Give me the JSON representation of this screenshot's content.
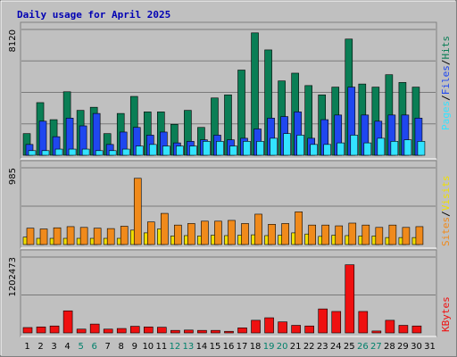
{
  "chart_data": {
    "type": "bar",
    "title": "Daily usage for April 2025",
    "categories": [
      "1",
      "2",
      "3",
      "4",
      "5",
      "6",
      "7",
      "8",
      "9",
      "10",
      "11",
      "12",
      "13",
      "14",
      "15",
      "16",
      "17",
      "18",
      "19",
      "20",
      "21",
      "22",
      "23",
      "24",
      "25",
      "26",
      "27",
      "28",
      "29",
      "30",
      "31"
    ],
    "weekend_days": [
      "5",
      "6",
      "12",
      "13",
      "19",
      "20",
      "26",
      "27"
    ],
    "panels": [
      {
        "name": "pages-files-hits",
        "ymax_label": "8120",
        "ylim": [
          0,
          8120
        ],
        "legend": [
          "Pages",
          "/",
          "Files",
          "/",
          "Hits"
        ],
        "series": [
          {
            "name": "Hits",
            "color": "#0a7e55",
            "values": [
              1400,
              3400,
              2300,
              4100,
              2900,
              3100,
              1400,
              2700,
              3800,
              2800,
              2800,
              2000,
              2900,
              1800,
              3700,
              3900,
              5500,
              7900,
              6800,
              4800,
              5300,
              4500,
              3900,
              4400,
              7500,
              4600,
              4400,
              5200,
              4700,
              4400,
              0
            ]
          },
          {
            "name": "Files",
            "color": "#1f47ef",
            "values": [
              700,
              2200,
              1200,
              2400,
              1900,
              2700,
              700,
              1500,
              1800,
              1300,
              1500,
              800,
              900,
              1000,
              1300,
              1000,
              1100,
              1700,
              2400,
              2500,
              2800,
              1100,
              2300,
              2600,
              4400,
              2600,
              2200,
              2600,
              2600,
              2400,
              0
            ]
          },
          {
            "name": "Pages",
            "color": "#33e3ff",
            "values": [
              300,
              300,
              400,
              400,
              400,
              300,
              300,
              400,
              600,
              700,
              600,
              600,
              600,
              900,
              900,
              600,
              900,
              900,
              1100,
              1400,
              1300,
              700,
              700,
              800,
              1300,
              800,
              1100,
              900,
              1000,
              900,
              0
            ]
          }
        ]
      },
      {
        "name": "visits-sites",
        "ymax_label": "985",
        "ylim": [
          0,
          985
        ],
        "legend": [
          "Sites",
          "/",
          "Visits"
        ],
        "series": [
          {
            "name": "Visits",
            "color": "#f0df00",
            "values": [
              95,
              80,
              80,
              80,
              80,
              80,
              80,
              80,
              185,
              150,
              200,
              110,
              115,
              110,
              120,
              115,
              120,
              125,
              115,
              120,
              150,
              135,
              105,
              120,
              115,
              110,
              110,
              90,
              90,
              90,
              0
            ]
          },
          {
            "name": "Sites",
            "color": "#f08a1b",
            "values": [
              210,
              200,
              215,
              230,
              220,
              210,
              205,
              235,
              850,
              290,
              400,
              250,
              270,
              300,
              300,
              310,
              270,
              390,
              260,
              270,
              420,
              250,
              250,
              240,
              275,
              250,
              220,
              250,
              220,
              230,
              0
            ]
          }
        ]
      },
      {
        "name": "kbytes",
        "ymax_label": "1202473",
        "ylim": [
          0,
          1202473
        ],
        "legend": [
          "KBytes"
        ],
        "series": [
          {
            "name": "KBytes",
            "color": "#ef1010",
            "values": [
              85000,
              95000,
              110000,
              350000,
              60000,
              140000,
              60000,
              70000,
              105000,
              95000,
              90000,
              40000,
              45000,
              40000,
              40000,
              25000,
              80000,
              200000,
              240000,
              175000,
              120000,
              110000,
              380000,
              340000,
              1080000,
              340000,
              30000,
              200000,
              120000,
              110000,
              0
            ]
          }
        ]
      }
    ],
    "colors": {
      "background": "#c0c0c0",
      "title": "#0000b4",
      "axis_text": "#000000",
      "weekend_day": "#00806b",
      "grid": "#7a7a7a"
    }
  }
}
